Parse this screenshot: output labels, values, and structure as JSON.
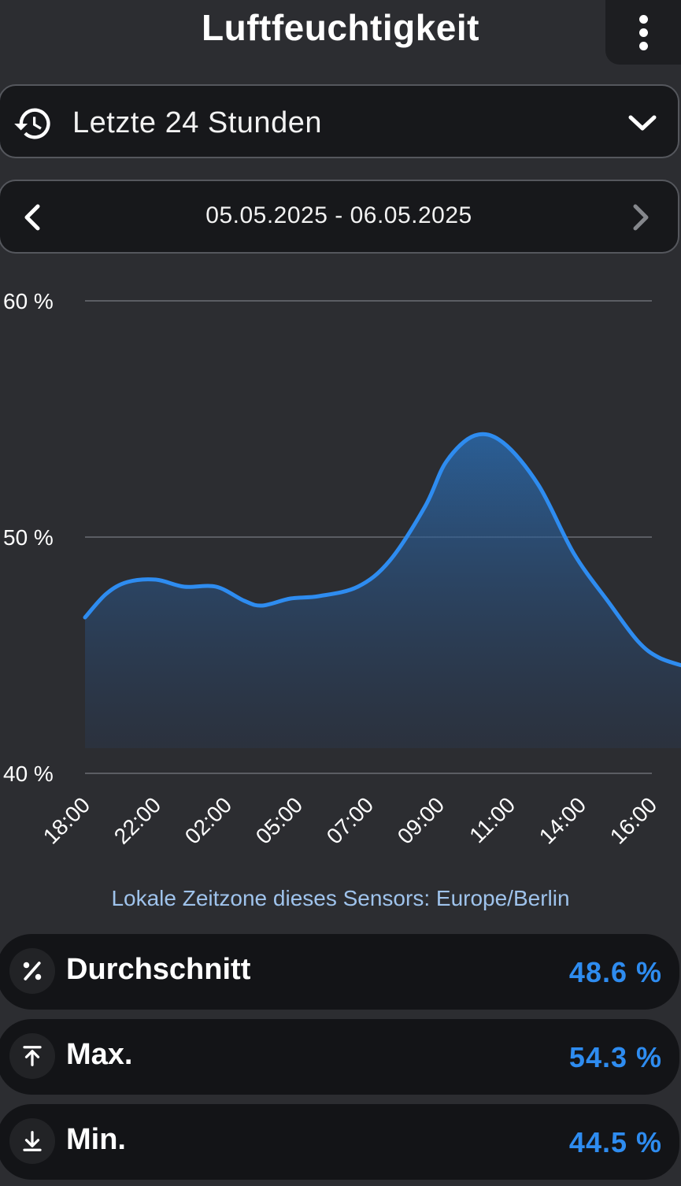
{
  "header": {
    "title": "Luftfeuchtigkeit",
    "menu_icon": "more-vertical-icon"
  },
  "range_selector": {
    "icon": "history-icon",
    "label": "Letzte 24 Stunden",
    "dropdown_icon": "chevron-down-icon"
  },
  "date_nav": {
    "prev_icon": "chevron-left-icon",
    "range": "05.05.2025 - 06.05.2025",
    "next_icon": "chevron-right-icon"
  },
  "chart_data": {
    "type": "area",
    "ylabel": "",
    "xlabel": "",
    "y_ticks": [
      "40 %",
      "50 %",
      "60 %"
    ],
    "ylim": [
      40,
      60
    ],
    "x_tick_labels": [
      "18:00",
      "22:00",
      "02:00",
      "05:00",
      "07:00",
      "09:00",
      "11:00",
      "14:00",
      "16:00"
    ],
    "series": [
      {
        "color": "#2e8cf0",
        "points": [
          {
            "x": 0,
            "y": 46.6
          },
          {
            "x": 0.3,
            "y": 47.6
          },
          {
            "x": 0.6,
            "y": 48.1
          },
          {
            "x": 1.0,
            "y": 48.2
          },
          {
            "x": 1.4,
            "y": 47.9
          },
          {
            "x": 1.85,
            "y": 47.9
          },
          {
            "x": 2.25,
            "y": 47.3
          },
          {
            "x": 2.5,
            "y": 47.1
          },
          {
            "x": 2.9,
            "y": 47.4
          },
          {
            "x": 3.3,
            "y": 47.5
          },
          {
            "x": 3.85,
            "y": 47.9
          },
          {
            "x": 4.3,
            "y": 49.0
          },
          {
            "x": 4.8,
            "y": 51.3
          },
          {
            "x": 5.1,
            "y": 53.2
          },
          {
            "x": 5.5,
            "y": 54.3
          },
          {
            "x": 5.9,
            "y": 54.0
          },
          {
            "x": 6.4,
            "y": 52.2
          },
          {
            "x": 6.9,
            "y": 49.3
          },
          {
            "x": 7.4,
            "y": 47.2
          },
          {
            "x": 7.8,
            "y": 45.6
          },
          {
            "x": 8.1,
            "y": 44.9
          },
          {
            "x": 8.5,
            "y": 44.5
          }
        ]
      }
    ],
    "grid": true
  },
  "timezone_note": "Lokale Zeitzone dieses Sensors: Europe/Berlin",
  "stats": [
    {
      "icon": "percent-icon",
      "label": "Durchschnitt",
      "value": "48.6 %"
    },
    {
      "icon": "arrow-up-to-line-icon",
      "label": "Max.",
      "value": "54.3 %"
    },
    {
      "icon": "arrow-down-to-line-icon",
      "label": "Min.",
      "value": "44.5 %"
    }
  ],
  "colors": {
    "background": "#2c2d31",
    "card": "#17181b",
    "accent": "#2e8cf0",
    "note": "#9fc3ec"
  }
}
